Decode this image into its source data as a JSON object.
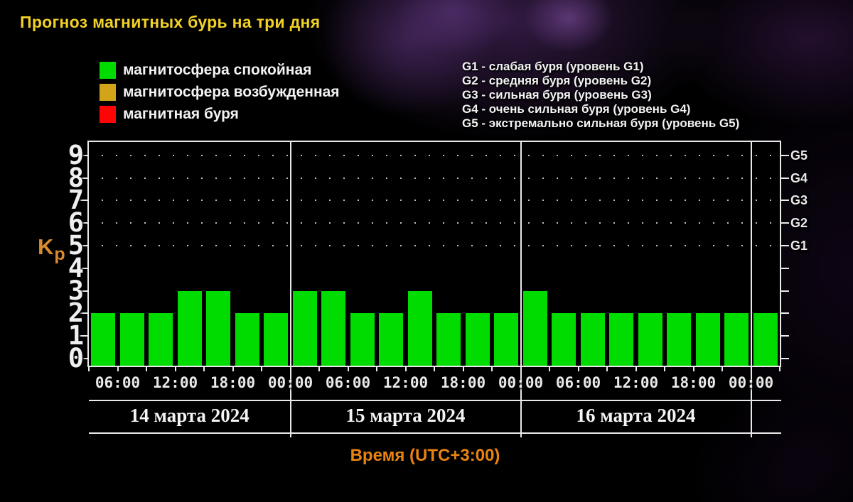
{
  "page": {
    "title": "Прогноз магнитных бурь на три дня"
  },
  "legend": {
    "items": [
      {
        "name": "quiet",
        "label": "магнитосфера спокойная",
        "color": "#00db00"
      },
      {
        "name": "excited",
        "label": "магнитосфера возбужденная",
        "color": "#d2a41a"
      },
      {
        "name": "storm",
        "label": "магнитная буря",
        "color": "#fe0505"
      }
    ]
  },
  "g_levels": [
    "G1 - слабая буря (уровень G1)",
    "G2 - средняя буря (уровень G2)",
    "G3 - сильная буря (уровень G3)",
    "G4 - очень сильная буря (уровень G4)",
    "G5 - экстремально сильная буря (уровень G5)"
  ],
  "chart_data": {
    "type": "bar",
    "title": "Прогноз магнитных бурь на три дня",
    "ylabel": "Kp",
    "xlabel": "Время (UTC+3:00)",
    "ylim": [
      0,
      9
    ],
    "yticks": [
      0,
      1,
      2,
      3,
      4,
      5,
      6,
      7,
      8,
      9
    ],
    "dotted_grid_kp": [
      5,
      6,
      7,
      8,
      9
    ],
    "right_axis": {
      "labels": [
        "G1",
        "G2",
        "G3",
        "G4",
        "G5"
      ],
      "kp_positions": [
        5,
        6,
        7,
        8,
        9
      ]
    },
    "bar_interval_hours": 3,
    "start_hour": 3,
    "x_tick_labels": [
      "06:00",
      "12:00",
      "18:00",
      "00:00",
      "06:00",
      "12:00",
      "18:00",
      "00:00",
      "06:00",
      "12:00",
      "18:00",
      "00:00"
    ],
    "days": [
      {
        "label": "14 марта 2024",
        "values": [
          2,
          2,
          2,
          3,
          3,
          2,
          2
        ]
      },
      {
        "label": "15 марта 2024",
        "values": [
          3,
          3,
          2,
          2,
          3,
          2,
          2,
          2
        ]
      },
      {
        "label": "16 марта 2024",
        "values": [
          3,
          2,
          2,
          2,
          2,
          2,
          2,
          2
        ]
      }
    ],
    "values_after_last_date_divider": [
      2
    ],
    "values": [
      2,
      2,
      2,
      3,
      3,
      2,
      2,
      3,
      3,
      2,
      2,
      3,
      2,
      2,
      2,
      3,
      2,
      2,
      2,
      2,
      2,
      2,
      2,
      2
    ],
    "bar_color": "#00db00"
  },
  "colors": {
    "background": "#000000",
    "nebula_purple": "#5a2d7a",
    "title_yellow": "#f2d226",
    "accent_orange": "#e8830f",
    "kp_label_orange": "#d98b2b",
    "axis_white": "#e9e9e9",
    "grid_dot": "#c0c0c0",
    "bar_green": "#00db00"
  }
}
